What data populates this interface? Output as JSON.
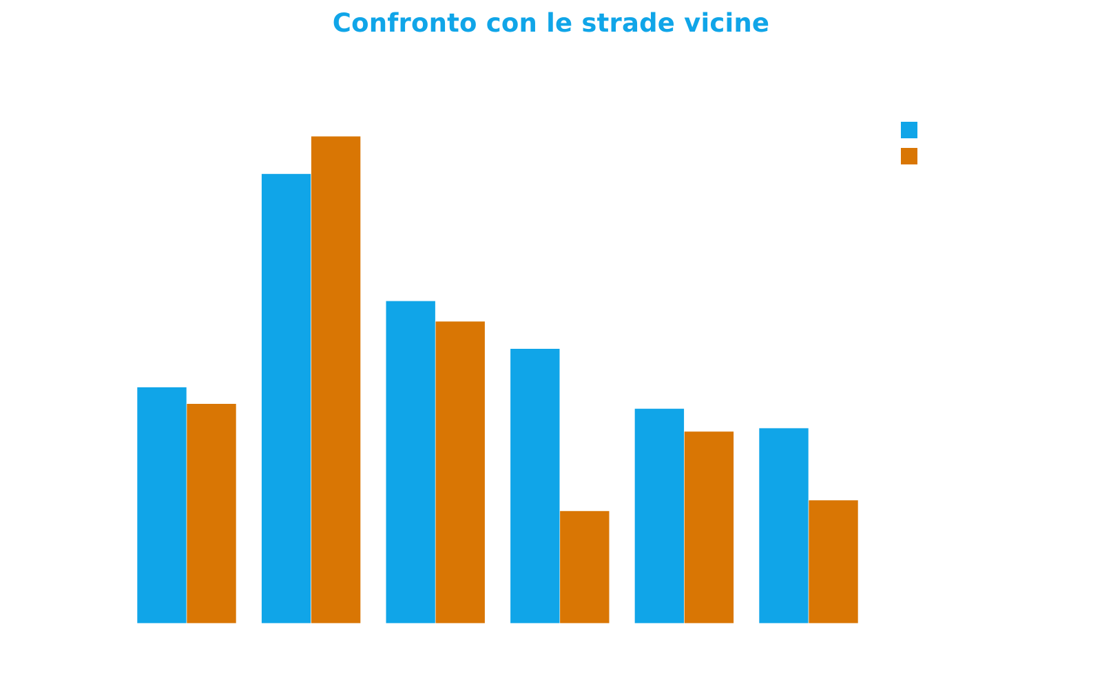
{
  "colors": {
    "series_1": "#10a5e8",
    "series_2": "#d97604",
    "title": "#10a5e8"
  },
  "chart_data": {
    "type": "bar",
    "title": "Confronto con le strade vicine",
    "xlabel": "",
    "ylabel": "",
    "categories": [
      "",
      "",
      "",
      "",
      "",
      ""
    ],
    "ylim": [
      0,
      100
    ],
    "grid": false,
    "legend": "top-right",
    "series": [
      {
        "name": "",
        "color": "#10a5e8",
        "values": [
          48.5,
          92.3,
          66.2,
          56.4,
          44.1,
          40.1
        ]
      },
      {
        "name": "",
        "color": "#d97604",
        "values": [
          45.1,
          100,
          62.0,
          23.1,
          39.4,
          25.3
        ]
      }
    ]
  }
}
